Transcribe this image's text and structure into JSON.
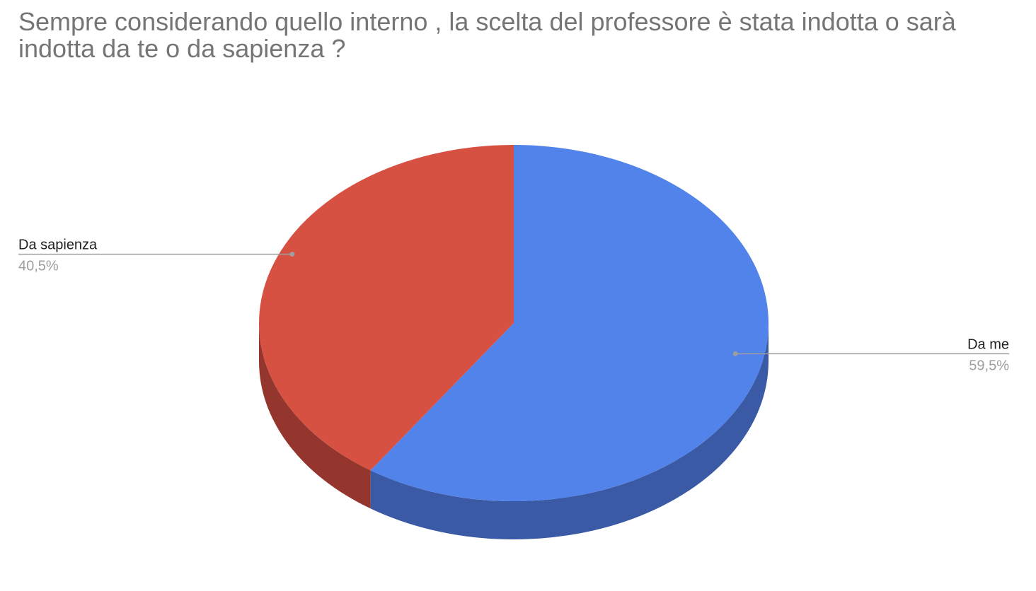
{
  "chart_data": {
    "type": "pie",
    "title": "Sempre considerando quello interno , la scelta del professore è stata indotta o sarà indotta da te o da sapienza ?",
    "three_d": true,
    "slices": [
      {
        "label": "Da me",
        "value": 59.5,
        "value_label": "59,5%",
        "color": "#5283ea",
        "side_color": "#3a5aa6"
      },
      {
        "label": "Da sapienza",
        "value": 40.5,
        "value_label": "40,5%",
        "color": "#d65142",
        "side_color": "#94352e"
      }
    ],
    "legend": "none",
    "label_placement": "outside-with-leader-lines"
  }
}
